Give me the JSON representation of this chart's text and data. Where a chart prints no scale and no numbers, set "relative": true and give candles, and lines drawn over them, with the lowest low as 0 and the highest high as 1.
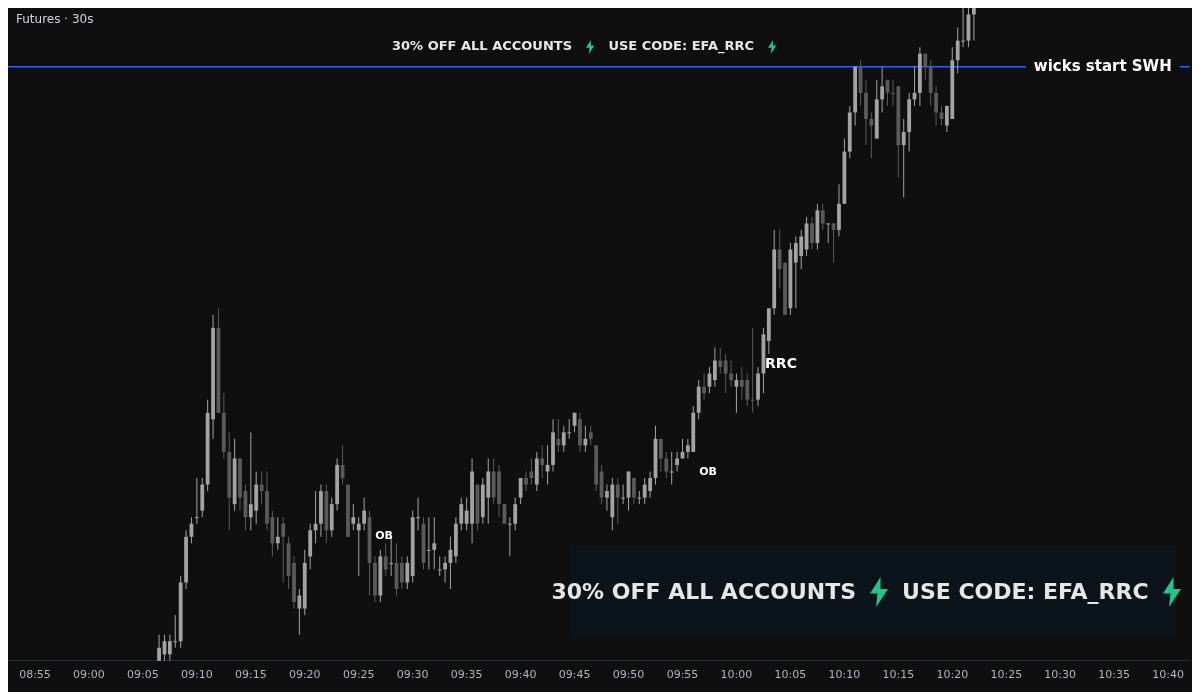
{
  "chart_data": {
    "type": "candlestick",
    "title": "Futures · 30s",
    "relative": true,
    "grid": false,
    "legend": false,
    "x": [
      9.1083,
      9.1167,
      9.125,
      9.1333,
      9.1417,
      9.15,
      9.1583,
      9.1667,
      9.175,
      9.1833,
      9.1917,
      9.2,
      9.2083,
      9.2167,
      9.225,
      9.2333,
      9.2417,
      9.25,
      9.2583,
      9.2667,
      9.275,
      9.2833,
      9.2917,
      9.3,
      9.3083,
      9.3167,
      9.325,
      9.3333,
      9.3417,
      9.35,
      9.3583,
      9.3667,
      9.375,
      9.3833,
      9.3917,
      9.4,
      9.4083,
      9.4167,
      9.425,
      9.4333,
      9.4417,
      9.45,
      9.4583,
      9.4667,
      9.475,
      9.4833,
      9.4917,
      9.5,
      9.5083,
      9.5167,
      9.525,
      9.5333,
      9.5417,
      9.55,
      9.5583,
      9.5667,
      9.575,
      9.5833,
      9.5917,
      9.6,
      9.6083,
      9.6167,
      9.625,
      9.6333,
      9.6417,
      9.65,
      9.6583,
      9.6667,
      9.675,
      9.6833,
      9.6917,
      9.7,
      9.7083,
      9.7167,
      9.725,
      9.7333,
      9.7417,
      9.75,
      9.7583,
      9.7667,
      9.775,
      9.7833,
      9.7917,
      9.8,
      9.8083,
      9.8167,
      9.825,
      9.8333,
      9.8417,
      9.85,
      9.8583,
      9.8667,
      9.875,
      9.8833,
      9.8917,
      9.9,
      9.9083,
      9.9167,
      9.925,
      9.9333,
      9.9417,
      9.95,
      9.9583,
      9.9667,
      9.975,
      9.9833,
      9.9917,
      10,
      10.0083,
      10.0167,
      10.025,
      10.0333,
      10.0417,
      10.05,
      10.0583,
      10.0667,
      10.075,
      10.0833,
      10.0917,
      10.1,
      10.1083,
      10.1167,
      10.125,
      10.1333,
      10.1417,
      10.15,
      10.1583,
      10.1667,
      10.175,
      10.1833,
      10.1917,
      10.2,
      10.2083,
      10.2167,
      10.225,
      10.2333,
      10.2417,
      10.25,
      10.2583,
      10.2667,
      10.275,
      10.2833,
      10.2917,
      10.3,
      10.3083,
      10.3167,
      10.325,
      10.3333,
      10.3417,
      10.35,
      10.3583,
      10.3667
    ],
    "ohlc": [
      [
        0,
        0.04,
        0,
        0.02
      ],
      [
        0.01,
        0.04,
        0,
        0.03
      ],
      [
        0.01,
        0.04,
        0,
        0.03
      ],
      [
        0.03,
        0.07,
        0.02,
        0.03
      ],
      [
        0.03,
        0.13,
        0.02,
        0.12
      ],
      [
        0.12,
        0.2,
        0.11,
        0.19
      ],
      [
        0.19,
        0.22,
        0.18,
        0.21
      ],
      [
        0.22,
        0.28,
        0.21,
        0.22
      ],
      [
        0.23,
        0.28,
        0.22,
        0.27
      ],
      [
        0.27,
        0.4,
        0.26,
        0.38
      ],
      [
        0.37,
        0.53,
        0.34,
        0.51
      ],
      [
        0.51,
        0.54,
        0.38,
        0.38
      ],
      [
        0.38,
        0.41,
        0.31,
        0.32
      ],
      [
        0.32,
        0.35,
        0.2,
        0.25
      ],
      [
        0.24,
        0.34,
        0.23,
        0.31
      ],
      [
        0.31,
        0.31,
        0.23,
        0.25
      ],
      [
        0.26,
        0.27,
        0.2,
        0.22
      ],
      [
        0.22,
        0.35,
        0.2,
        0.24
      ],
      [
        0.23,
        0.29,
        0.21,
        0.27
      ],
      [
        0.27,
        0.29,
        0.24,
        0.26
      ],
      [
        0.26,
        0.29,
        0.2,
        0.21
      ],
      [
        0.22,
        0.23,
        0.16,
        0.18
      ],
      [
        0.18,
        0.22,
        0.17,
        0.19
      ],
      [
        0.21,
        0.22,
        0.12,
        0.19
      ],
      [
        0.18,
        0.19,
        0.11,
        0.13
      ],
      [
        0.15,
        0.16,
        0.08,
        0.09
      ],
      [
        0.08,
        0.11,
        0.04,
        0.1
      ],
      [
        0.08,
        0.17,
        0.07,
        0.15
      ],
      [
        0.16,
        0.21,
        0.14,
        0.2
      ],
      [
        0.2,
        0.26,
        0.18,
        0.21
      ],
      [
        0.21,
        0.27,
        0.19,
        0.26
      ],
      [
        0.26,
        0.27,
        0.18,
        0.2
      ],
      [
        0.2,
        0.25,
        0.19,
        0.24
      ],
      [
        0.24,
        0.31,
        0.23,
        0.3
      ],
      [
        0.3,
        0.33,
        0.27,
        0.28
      ],
      [
        0.27,
        0.27,
        0.19,
        0.19
      ],
      [
        0.21,
        0.24,
        0.2,
        0.22
      ],
      [
        0.2,
        0.22,
        0.13,
        0.21
      ],
      [
        0.21,
        0.25,
        0.2,
        0.23
      ],
      [
        0.22,
        0.23,
        0.1,
        0.15
      ],
      [
        0.15,
        0.16,
        0.09,
        0.1
      ],
      [
        0.1,
        0.17,
        0.09,
        0.16
      ],
      [
        0.16,
        0.18,
        0.13,
        0.14
      ],
      [
        0.15,
        0.19,
        0.13,
        0.15
      ],
      [
        0.15,
        0.18,
        0.1,
        0.11
      ],
      [
        0.15,
        0.16,
        0.11,
        0.12
      ],
      [
        0.12,
        0.16,
        0.11,
        0.15
      ],
      [
        0.13,
        0.23,
        0.12,
        0.22
      ],
      [
        0.22,
        0.25,
        0.2,
        0.22
      ],
      [
        0.21,
        0.22,
        0.14,
        0.15
      ],
      [
        0.17,
        0.22,
        0.14,
        0.17
      ],
      [
        0.17,
        0.22,
        0.14,
        0.18
      ],
      [
        0.14,
        0.16,
        0.13,
        0.14
      ],
      [
        0.14,
        0.16,
        0.12,
        0.15
      ],
      [
        0.15,
        0.19,
        0.11,
        0.17
      ],
      [
        0.16,
        0.22,
        0.15,
        0.21
      ],
      [
        0.21,
        0.25,
        0.2,
        0.24
      ],
      [
        0.21,
        0.25,
        0.2,
        0.23
      ],
      [
        0.21,
        0.31,
        0.18,
        0.29
      ],
      [
        0.27,
        0.27,
        0.2,
        0.21
      ],
      [
        0.22,
        0.28,
        0.21,
        0.27
      ],
      [
        0.25,
        0.31,
        0.21,
        0.29
      ],
      [
        0.29,
        0.31,
        0.24,
        0.25
      ],
      [
        0.29,
        0.3,
        0.22,
        0.24
      ],
      [
        0.24,
        0.24,
        0.21,
        0.21
      ],
      [
        0.21,
        0.22,
        0.16,
        0.21
      ],
      [
        0.21,
        0.25,
        0.2,
        0.24
      ],
      [
        0.25,
        0.28,
        0.24,
        0.28
      ],
      [
        0.28,
        0.29,
        0.26,
        0.27
      ],
      [
        0.29,
        0.31,
        0.27,
        0.28
      ],
      [
        0.27,
        0.32,
        0.26,
        0.31
      ],
      [
        0.31,
        0.33,
        0.28,
        0.3
      ],
      [
        0.29,
        0.33,
        0.27,
        0.3
      ],
      [
        0.3,
        0.37,
        0.29,
        0.35
      ],
      [
        0.34,
        0.37,
        0.32,
        0.33
      ],
      [
        0.33,
        0.36,
        0.32,
        0.35
      ],
      [
        0.35,
        0.37,
        0.34,
        0.35
      ],
      [
        0.36,
        0.38,
        0.35,
        0.38
      ],
      [
        0.37,
        0.38,
        0.32,
        0.33
      ],
      [
        0.33,
        0.36,
        0.32,
        0.34
      ],
      [
        0.35,
        0.36,
        0.33,
        0.34
      ],
      [
        0.33,
        0.33,
        0.26,
        0.27
      ],
      [
        0.29,
        0.3,
        0.24,
        0.25
      ],
      [
        0.25,
        0.27,
        0.23,
        0.26
      ],
      [
        0.22,
        0.28,
        0.2,
        0.27
      ],
      [
        0.27,
        0.28,
        0.21,
        0.25
      ],
      [
        0.25,
        0.27,
        0.24,
        0.25
      ],
      [
        0.25,
        0.29,
        0.23,
        0.29
      ],
      [
        0.28,
        0.28,
        0.24,
        0.25
      ],
      [
        0.25,
        0.26,
        0.24,
        0.25
      ],
      [
        0.25,
        0.28,
        0.24,
        0.27
      ],
      [
        0.26,
        0.29,
        0.25,
        0.28
      ],
      [
        0.28,
        0.36,
        0.27,
        0.34
      ],
      [
        0.34,
        0.34,
        0.29,
        0.31
      ],
      [
        0.31,
        0.32,
        0.28,
        0.29
      ],
      [
        0.29,
        0.32,
        0.27,
        0.29
      ],
      [
        0.3,
        0.32,
        0.29,
        0.31
      ],
      [
        0.31,
        0.34,
        0.31,
        0.32
      ],
      [
        0.32,
        0.34,
        0.31,
        0.33
      ],
      [
        0.32,
        0.39,
        0.32,
        0.38
      ],
      [
        0.38,
        0.43,
        0.37,
        0.42
      ],
      [
        0.42,
        0.44,
        0.4,
        0.41
      ],
      [
        0.42,
        0.45,
        0.41,
        0.44
      ],
      [
        0.43,
        0.48,
        0.42,
        0.46
      ],
      [
        0.46,
        0.48,
        0.44,
        0.45
      ],
      [
        0.46,
        0.47,
        0.41,
        0.44
      ],
      [
        0.44,
        0.46,
        0.42,
        0.43
      ],
      [
        0.42,
        0.44,
        0.38,
        0.43
      ],
      [
        0.43,
        0.45,
        0.4,
        0.42
      ],
      [
        0.43,
        0.44,
        0.39,
        0.4
      ],
      [
        0.4,
        0.51,
        0.38,
        0.4
      ],
      [
        0.4,
        0.45,
        0.39,
        0.44
      ],
      [
        0.44,
        0.51,
        0.41,
        0.5
      ],
      [
        0.49,
        0.54,
        0.47,
        0.54
      ],
      [
        0.54,
        0.66,
        0.53,
        0.63
      ],
      [
        0.63,
        0.66,
        0.57,
        0.6
      ],
      [
        0.61,
        0.61,
        0.53,
        0.53
      ],
      [
        0.54,
        0.64,
        0.53,
        0.63
      ],
      [
        0.61,
        0.65,
        0.54,
        0.64
      ],
      [
        0.62,
        0.66,
        0.6,
        0.65
      ],
      [
        0.63,
        0.68,
        0.62,
        0.67
      ],
      [
        0.67,
        0.68,
        0.63,
        0.64
      ],
      [
        0.64,
        0.7,
        0.63,
        0.69
      ],
      [
        0.69,
        0.7,
        0.66,
        0.67
      ],
      [
        0.67,
        0.67,
        0.64,
        0.67
      ],
      [
        0.67,
        0.67,
        0.61,
        0.66
      ],
      [
        0.66,
        0.73,
        0.65,
        0.7
      ],
      [
        0.7,
        0.8,
        0.7,
        0.78
      ],
      [
        0.78,
        0.85,
        0.77,
        0.84
      ],
      [
        0.84,
        0.91,
        0.82,
        0.91
      ],
      [
        0.91,
        0.92,
        0.85,
        0.87
      ],
      [
        0.87,
        0.89,
        0.79,
        0.83
      ],
      [
        0.83,
        0.84,
        0.77,
        0.82
      ],
      [
        0.8,
        0.89,
        0.8,
        0.86
      ],
      [
        0.86,
        0.91,
        0.84,
        0.88
      ],
      [
        0.89,
        0.89,
        0.85,
        0.87
      ],
      [
        0.87,
        0.89,
        0.85,
        0.87
      ],
      [
        0.88,
        0.88,
        0.74,
        0.79
      ],
      [
        0.79,
        0.83,
        0.71,
        0.81
      ],
      [
        0.81,
        0.87,
        0.78,
        0.86
      ],
      [
        0.86,
        0.91,
        0.85,
        0.87
      ],
      [
        0.87,
        0.94,
        0.85,
        0.93
      ],
      [
        0.93,
        0.93,
        0.89,
        0.91
      ],
      [
        0.91,
        0.92,
        0.85,
        0.87
      ],
      [
        0.87,
        0.88,
        0.82,
        0.84
      ],
      [
        0.84,
        0.85,
        0.82,
        0.83
      ],
      [
        0.82,
        0.85,
        0.81,
        0.85
      ],
      [
        0.83,
        0.94,
        0.83,
        0.92
      ],
      [
        0.92,
        0.97,
        0.9,
        0.95
      ],
      [
        0.95,
        1,
        0.94,
        0.95
      ],
      [
        0.95,
        1,
        0.94,
        0.99
      ],
      [
        0.99,
        1,
        0.95,
        1
      ]
    ],
    "colors": [
      "#a3a3a3",
      "#a3a3a3",
      "#a3a3a3",
      "#a3a3a3",
      "#a3a3a3",
      "#a3a3a3",
      "#a3a3a3",
      "#a3a3a3",
      "#a3a3a3",
      "#a3a3a3",
      "#a3a3a3",
      "#5a5a5a",
      "#5a5a5a",
      "#5a5a5a",
      "#a3a3a3",
      "#5a5a5a",
      "#5a5a5a",
      "#a3a3a3",
      "#a3a3a3",
      "#5a5a5a",
      "#5a5a5a",
      "#5a5a5a",
      "#a3a3a3",
      "#5a5a5a",
      "#5a5a5a",
      "#5a5a5a",
      "#a3a3a3",
      "#a3a3a3",
      "#a3a3a3",
      "#a3a3a3",
      "#a3a3a3",
      "#5a5a5a",
      "#a3a3a3",
      "#a3a3a3",
      "#5a5a5a",
      "#5a5a5a",
      "#a3a3a3",
      "#a3a3a3",
      "#a3a3a3",
      "#5a5a5a",
      "#5a5a5a",
      "#a3a3a3",
      "#5a5a5a",
      "#a3a3a3",
      "#5a5a5a",
      "#5a5a5a",
      "#a3a3a3",
      "#a3a3a3",
      "#a3a3a3",
      "#5a5a5a",
      "#a3a3a3",
      "#a3a3a3",
      "#a3a3a3",
      "#a3a3a3",
      "#a3a3a3",
      "#a3a3a3",
      "#a3a3a3",
      "#a3a3a3",
      "#a3a3a3",
      "#5a5a5a",
      "#a3a3a3",
      "#a3a3a3",
      "#5a5a5a",
      "#5a5a5a",
      "#5a5a5a",
      "#a3a3a3",
      "#a3a3a3",
      "#a3a3a3",
      "#5a5a5a",
      "#5a5a5a",
      "#a3a3a3",
      "#5a5a5a",
      "#a3a3a3",
      "#a3a3a3",
      "#5a5a5a",
      "#a3a3a3",
      "#a3a3a3",
      "#a3a3a3",
      "#5a5a5a",
      "#a3a3a3",
      "#5a5a5a",
      "#5a5a5a",
      "#5a5a5a",
      "#a3a3a3",
      "#a3a3a3",
      "#5a5a5a",
      "#a3a3a3",
      "#a3a3a3",
      "#5a5a5a",
      "#a3a3a3",
      "#a3a3a3",
      "#a3a3a3",
      "#a3a3a3",
      "#5a5a5a",
      "#5a5a5a",
      "#a3a3a3",
      "#a3a3a3",
      "#a3a3a3",
      "#a3a3a3",
      "#a3a3a3",
      "#a3a3a3",
      "#5a5a5a",
      "#a3a3a3",
      "#a3a3a3",
      "#5a5a5a",
      "#5a5a5a",
      "#5a5a5a",
      "#a3a3a3",
      "#5a5a5a",
      "#5a5a5a",
      "#5a5a5a",
      "#a3a3a3",
      "#a3a3a3",
      "#a3a3a3",
      "#a3a3a3",
      "#5a5a5a",
      "#5a5a5a",
      "#a3a3a3",
      "#a3a3a3",
      "#a3a3a3",
      "#a3a3a3",
      "#5a5a5a",
      "#a3a3a3",
      "#5a5a5a",
      "#a3a3a3",
      "#5a5a5a",
      "#a3a3a3",
      "#a3a3a3",
      "#a3a3a3",
      "#a3a3a3",
      "#5a5a5a",
      "#5a5a5a",
      "#5a5a5a",
      "#a3a3a3",
      "#a3a3a3",
      "#5a5a5a",
      "#5a5a5a",
      "#5a5a5a",
      "#a3a3a3",
      "#a3a3a3",
      "#a3a3a3",
      "#a3a3a3",
      "#5a5a5a",
      "#5a5a5a",
      "#5a5a5a",
      "#5a5a5a",
      "#a3a3a3",
      "#a3a3a3",
      "#a3a3a3",
      "#a3a3a3",
      "#a3a3a3",
      "#a3a3a3"
    ],
    "xlim": [
      8.875,
      10.7
    ],
    "xticks": [
      {
        "value": 8.9167,
        "label": "08:55"
      },
      {
        "value": 9,
        "label": "09:00"
      },
      {
        "value": 9.0833,
        "label": "09:05"
      },
      {
        "value": 9.1667,
        "label": "09:10"
      },
      {
        "value": 9.25,
        "label": "09:15"
      },
      {
        "value": 9.3333,
        "label": "09:20"
      },
      {
        "value": 9.4167,
        "label": "09:25"
      },
      {
        "value": 9.5,
        "label": "09:30"
      },
      {
        "value": 9.5833,
        "label": "09:35"
      },
      {
        "value": 9.6667,
        "label": "09:40"
      },
      {
        "value": 9.75,
        "label": "09:45"
      },
      {
        "value": 9.8333,
        "label": "09:50"
      },
      {
        "value": 9.9167,
        "label": "09:55"
      },
      {
        "value": 10,
        "label": "10:00"
      },
      {
        "value": 10.0833,
        "label": "10:05"
      },
      {
        "value": 10.1667,
        "label": "10:10"
      },
      {
        "value": 10.25,
        "label": "10:15"
      },
      {
        "value": 10.3333,
        "label": "10:20"
      },
      {
        "value": 10.4167,
        "label": "10:25"
      },
      {
        "value": 10.5,
        "label": "10:30"
      },
      {
        "value": 10.5833,
        "label": "10:35"
      },
      {
        "value": 10.6667,
        "label": "10:40"
      }
    ],
    "ref_lines": [
      {
        "axis": "y",
        "value": 0.91,
        "label": "wicks start SWH",
        "color": "#2962ff"
      }
    ],
    "annotations": [
      "OB",
      "OB",
      "RRC",
      "30% OFF ALL ACCOUNTS",
      "USE CODE: EFA_RRC",
      "30% OFF ALL ACCOUNTS",
      "USE CODE: EFA_RRC"
    ]
  }
}
